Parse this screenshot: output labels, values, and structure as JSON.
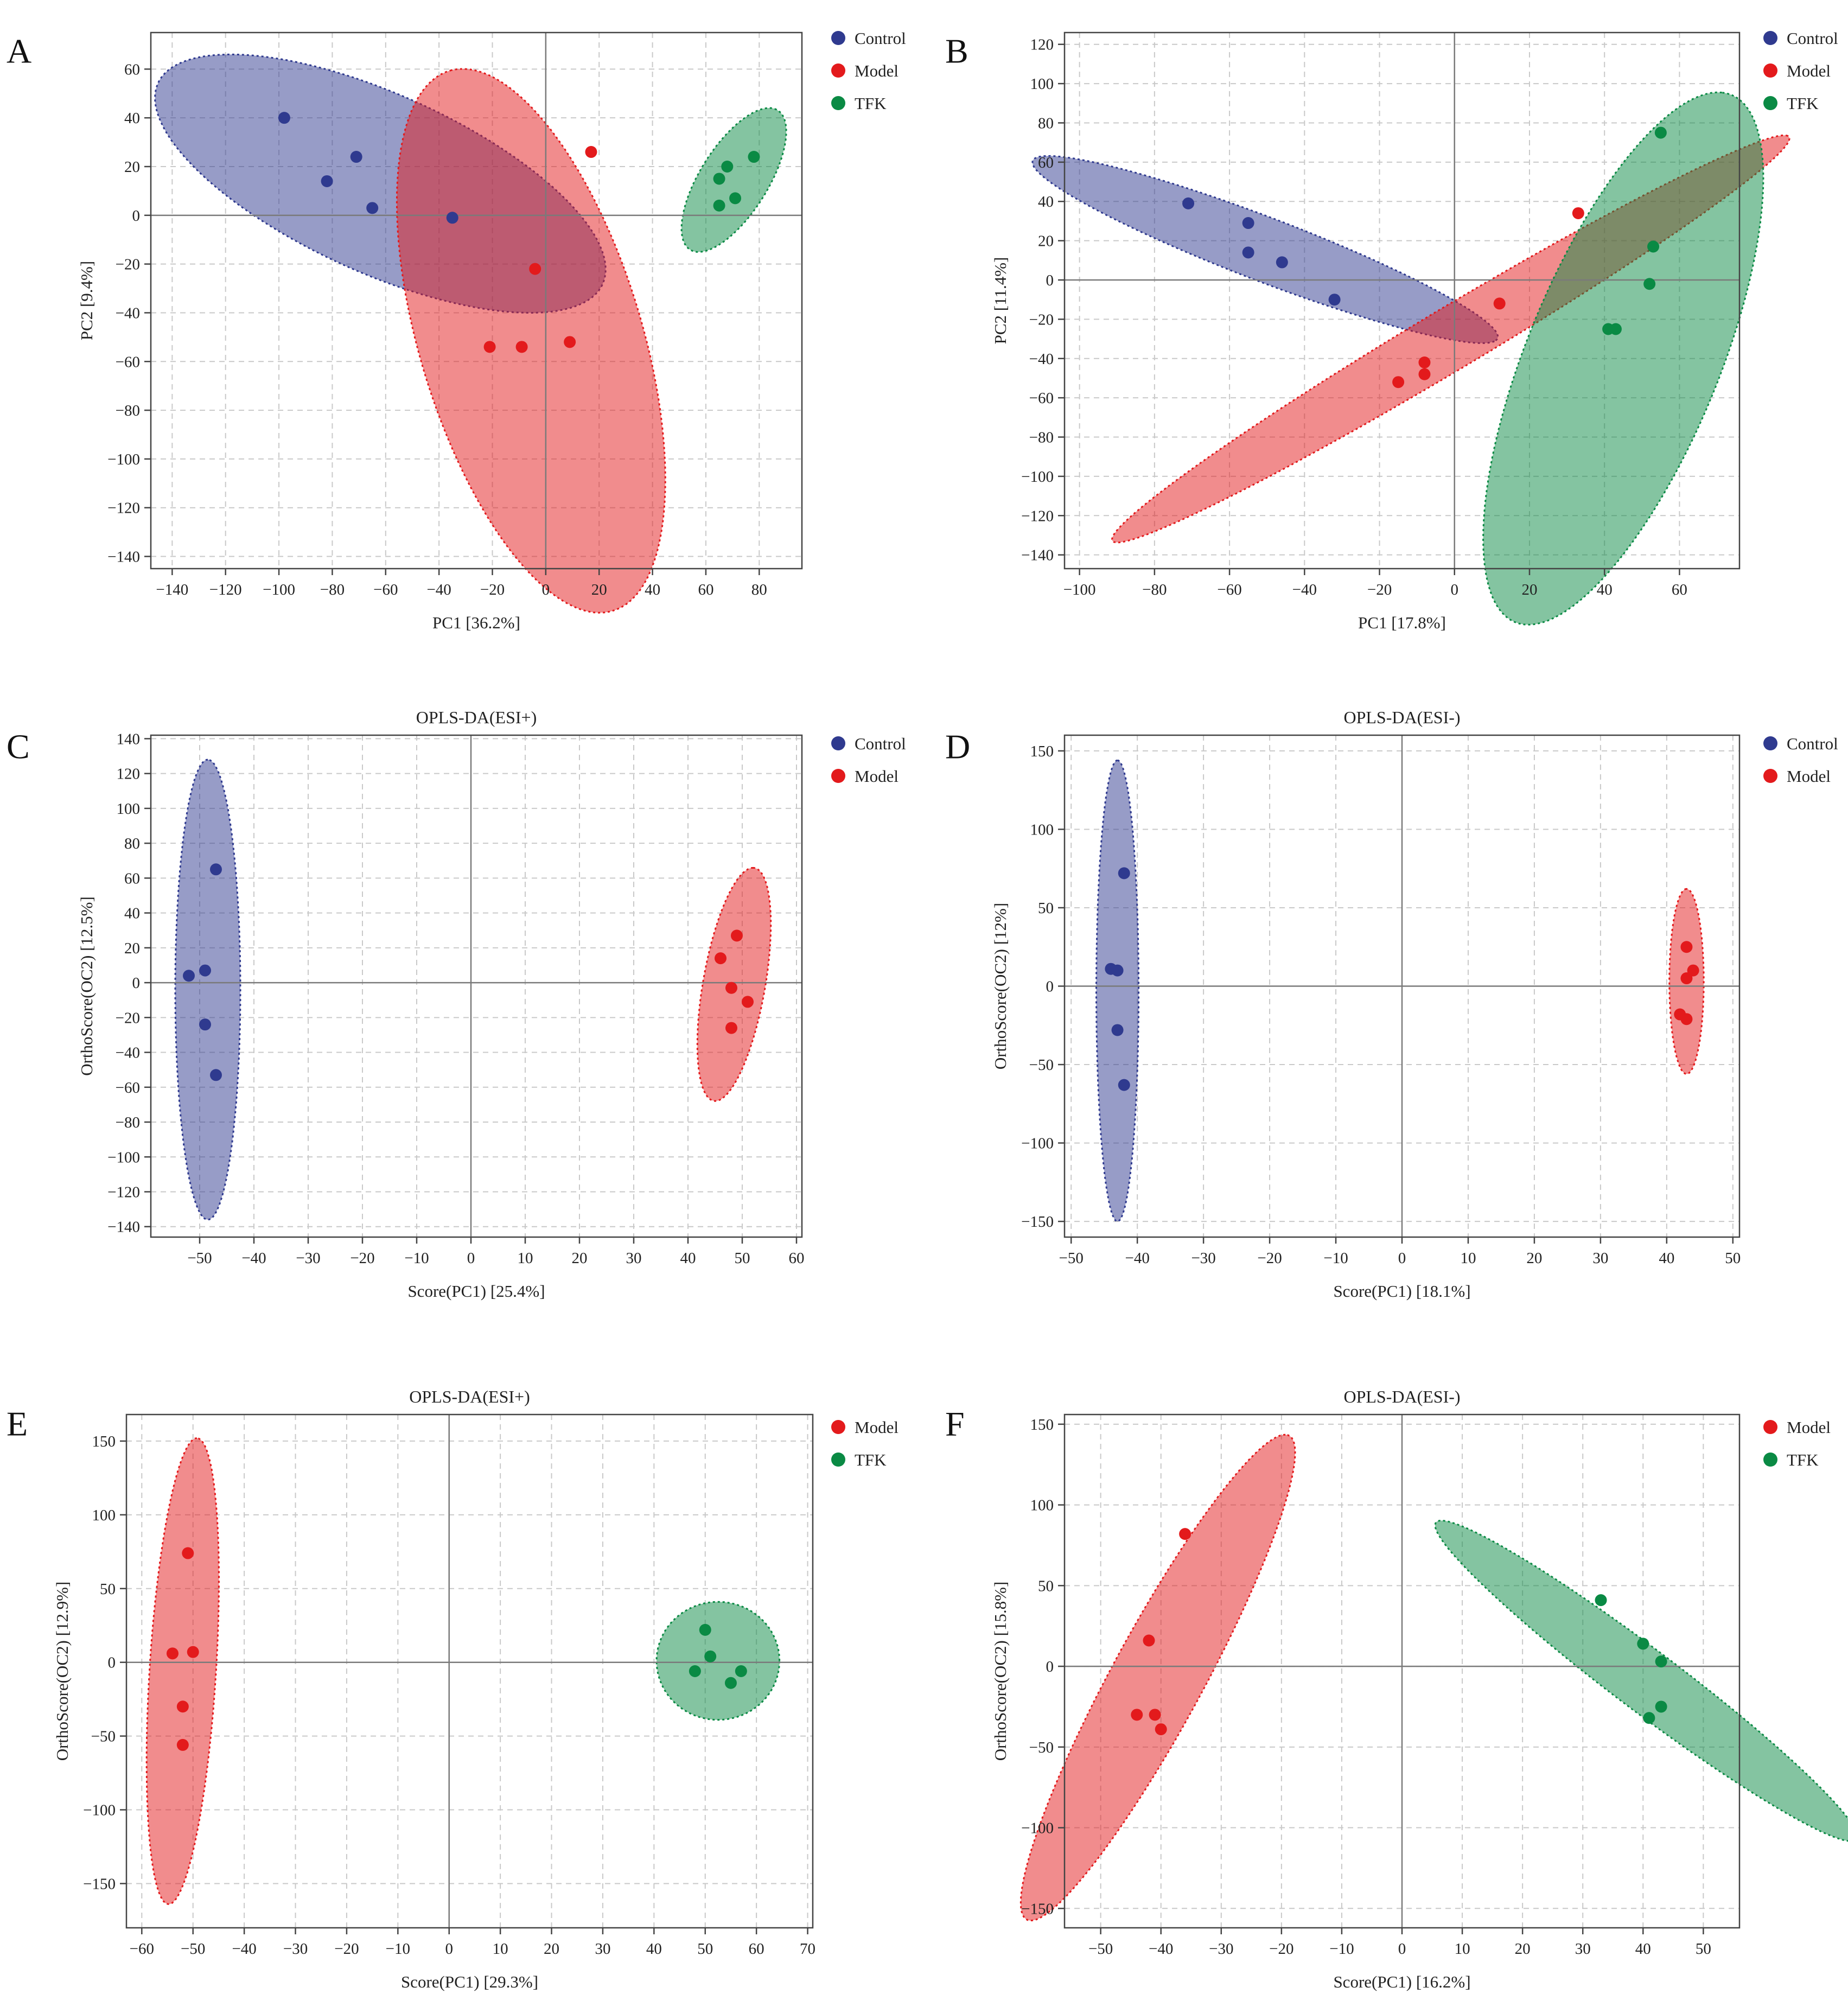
{
  "chart_data": [
    {
      "panel": "A",
      "type": "scatter",
      "title": "",
      "xlabel": "PC1 [36.2%]",
      "ylabel": "PC2 [9.4%]",
      "xlim": [
        -148,
        96
      ],
      "ylim": [
        -145,
        75
      ],
      "xticks": [
        -140,
        -120,
        -100,
        -80,
        -60,
        -40,
        -20,
        0,
        20,
        40,
        60,
        80
      ],
      "yticks": [
        60,
        40,
        20,
        0,
        -20,
        -40,
        -60,
        -80,
        -100,
        -120,
        -140
      ],
      "grid": true,
      "legend_position": "top-right",
      "series": [
        {
          "name": "Control",
          "color": "#2f3a8f",
          "points": [
            [
              -98,
              40
            ],
            [
              -82,
              14
            ],
            [
              -71,
              24
            ],
            [
              -65,
              3
            ],
            [
              -35,
              -1
            ]
          ],
          "ellipse": {
            "center": [
              -62,
              13
            ],
            "semi_axes": [
              93,
              36
            ],
            "angle_deg": -27
          }
        },
        {
          "name": "Model",
          "color": "#e31a1c",
          "points": [
            [
              -4,
              -22
            ],
            [
              -21,
              -54
            ],
            [
              -9,
              -54
            ],
            [
              9,
              -52
            ],
            [
              17,
              26
            ]
          ],
          "ellipse": {
            "center": [
              -5.5,
              -51.5
            ],
            "semi_axes": [
              115,
              42
            ],
            "angle_deg": 105
          }
        },
        {
          "name": "TFK",
          "color": "#0a8a44",
          "points": [
            [
              78,
              24
            ],
            [
              68,
              20
            ],
            [
              65,
              15
            ],
            [
              71,
              7
            ],
            [
              65,
              4
            ]
          ],
          "ellipse": {
            "center": [
              70.5,
              14.5
            ],
            "semi_axes": [
              33,
              13
            ],
            "angle_deg": 61
          }
        }
      ]
    },
    {
      "panel": "B",
      "type": "scatter",
      "title": "",
      "xlabel": "PC1 [17.8%]",
      "ylabel": "PC2 [11.4%]",
      "xlim": [
        -104,
        76
      ],
      "ylim": [
        -147,
        126
      ],
      "xticks": [
        -100,
        -80,
        -60,
        -40,
        -20,
        0,
        20,
        40,
        60
      ],
      "yticks": [
        120,
        100,
        80,
        60,
        40,
        20,
        0,
        -20,
        -40,
        -60,
        -80,
        -100,
        -120,
        -140
      ],
      "grid": true,
      "legend_position": "top-right",
      "series": [
        {
          "name": "Control",
          "color": "#2f3a8f",
          "points": [
            [
              -71,
              39
            ],
            [
              -55,
              29
            ],
            [
              -55,
              14
            ],
            [
              -46,
              9
            ],
            [
              -32,
              -10
            ]
          ],
          "ellipse": {
            "center": [
              -50.5,
              15.5
            ],
            "semi_axes": [
              77,
              14
            ],
            "angle_deg": -37
          }
        },
        {
          "name": "Model",
          "color": "#e31a1c",
          "points": [
            [
              -15,
              -52
            ],
            [
              -8,
              -42
            ],
            [
              -8,
              -48
            ],
            [
              12,
              -12
            ],
            [
              33,
              34
            ]
          ],
          "ellipse": {
            "center": [
              -1,
              -30
            ],
            "semi_axes": [
              137,
              12
            ],
            "angle_deg": 49
          }
        },
        {
          "name": "TFK",
          "color": "#0a8a44",
          "points": [
            [
              55,
              75
            ],
            [
              53,
              17
            ],
            [
              52,
              -2
            ],
            [
              41,
              -25
            ],
            [
              43,
              -25
            ]
          ],
          "ellipse": {
            "center": [
              45,
              -40
            ],
            "semi_axes": [
              138,
              27
            ],
            "angle_deg": 79
          }
        }
      ]
    },
    {
      "panel": "C",
      "type": "scatter",
      "title": "OPLS-DA(ESI+)",
      "xlabel": "Score(PC1) [25.4%]",
      "ylabel": "OrthoScore(OC2) [12.5%]",
      "xlim": [
        -59,
        61
      ],
      "ylim": [
        -146,
        142
      ],
      "xticks": [
        -50,
        -40,
        -30,
        -20,
        -10,
        0,
        10,
        20,
        30,
        40,
        50,
        60
      ],
      "yticks": [
        140,
        120,
        100,
        80,
        60,
        40,
        20,
        0,
        -20,
        -40,
        -60,
        -80,
        -100,
        -120,
        -140
      ],
      "grid": true,
      "legend_position": "top-right",
      "series": [
        {
          "name": "Control",
          "color": "#2f3a8f",
          "points": [
            [
              -47,
              65
            ],
            [
              -52,
              4
            ],
            [
              -49,
              7
            ],
            [
              -49,
              -24
            ],
            [
              -47,
              -53
            ]
          ],
          "ellipse": {
            "center": [
              -48.5,
              -4
            ],
            "semi_axes": [
              132,
              6
            ],
            "angle_deg": 90
          }
        },
        {
          "name": "Model",
          "color": "#e31a1c",
          "points": [
            [
              46,
              14
            ],
            [
              49,
              27
            ],
            [
              48,
              -3
            ],
            [
              51,
              -11
            ],
            [
              48,
              -26
            ]
          ],
          "ellipse": {
            "center": [
              48.5,
              -1
            ],
            "semi_axes": [
              67,
              5.8
            ],
            "angle_deg": 87
          }
        }
      ]
    },
    {
      "panel": "D",
      "type": "scatter",
      "title": "OPLS-DA(ESI-)",
      "xlabel": "Score(PC1) [18.1%]",
      "ylabel": "OrthoScore(OC2) [12%]",
      "xlim": [
        -51,
        51
      ],
      "ylim": [
        -160,
        160
      ],
      "xticks": [
        -50,
        -40,
        -30,
        -20,
        -10,
        0,
        10,
        20,
        30,
        40,
        50
      ],
      "yticks": [
        150,
        100,
        50,
        0,
        -50,
        -100,
        -150
      ],
      "grid": true,
      "legend_position": "top-right",
      "series": [
        {
          "name": "Control",
          "color": "#2f3a8f",
          "points": [
            [
              -42,
              72
            ],
            [
              -44,
              11
            ],
            [
              -43,
              10
            ],
            [
              -43,
              -28
            ],
            [
              -42,
              -63
            ]
          ],
          "ellipse": {
            "center": [
              -43,
              -3
            ],
            "semi_axes": [
              147,
              3.2
            ],
            "angle_deg": 90
          }
        },
        {
          "name": "Model",
          "color": "#e31a1c",
          "points": [
            [
              43,
              25
            ],
            [
              44,
              10
            ],
            [
              43,
              5
            ],
            [
              42,
              -18
            ],
            [
              43,
              -21
            ]
          ],
          "ellipse": {
            "center": [
              43,
              3
            ],
            "semi_axes": [
              59,
              2.6
            ],
            "angle_deg": 90
          }
        }
      ]
    },
    {
      "panel": "E",
      "type": "scatter",
      "title": "OPLS-DA(ESI+)",
      "xlabel": "Score(PC1) [29.3%]",
      "ylabel": "OrthoScore(OC2) [12.9%]",
      "xlim": [
        -63,
        71
      ],
      "ylim": [
        -180,
        168
      ],
      "xticks": [
        -60,
        -50,
        -40,
        -30,
        -20,
        -10,
        0,
        10,
        20,
        30,
        40,
        50,
        60,
        70
      ],
      "yticks": [
        150,
        100,
        50,
        0,
        -50,
        -100,
        -150
      ],
      "grid": true,
      "legend_position": "top-right",
      "series": [
        {
          "name": "Model",
          "color": "#e31a1c",
          "points": [
            [
              -51,
              74
            ],
            [
              -54,
              6
            ],
            [
              -50,
              7
            ],
            [
              -52,
              -30
            ],
            [
              -52,
              -56
            ]
          ],
          "ellipse": {
            "center": [
              -52,
              -6
            ],
            "semi_axes": [
              158,
              6.5
            ],
            "angle_deg": 89
          }
        },
        {
          "name": "TFK",
          "color": "#0a8a44",
          "points": [
            [
              50,
              22
            ],
            [
              51,
              4
            ],
            [
              48,
              -6
            ],
            [
              57,
              -6
            ],
            [
              55,
              -14
            ]
          ],
          "ellipse": {
            "center": [
              52.5,
              1
            ],
            "semi_axes": [
              12,
              40
            ],
            "angle_deg": 0
          }
        }
      ]
    },
    {
      "panel": "F",
      "type": "scatter",
      "title": "OPLS-DA(ESI-)",
      "xlabel": "Score(PC1) [16.2%]",
      "ylabel": "OrthoScore(OC2) [15.8%]",
      "xlim": [
        -56,
        56
      ],
      "ylim": [
        -162,
        156
      ],
      "xticks": [
        -50,
        -40,
        -30,
        -20,
        -10,
        0,
        10,
        20,
        30,
        40,
        50
      ],
      "yticks": [
        150,
        100,
        50,
        0,
        -50,
        -100,
        -150
      ],
      "grid": true,
      "legend_position": "top-right",
      "series": [
        {
          "name": "Model",
          "color": "#e31a1c",
          "points": [
            [
              -36,
              82
            ],
            [
              -42,
              16
            ],
            [
              -44,
              -30
            ],
            [
              -41,
              -30
            ],
            [
              -40,
              -39
            ]
          ],
          "ellipse": {
            "center": [
              -40.5,
              -7
            ],
            "semi_axes": [
              152,
              8.5
            ],
            "angle_deg": 82
          }
        },
        {
          "name": "TFK",
          "color": "#0a8a44",
          "points": [
            [
              33,
              41
            ],
            [
              40,
              14
            ],
            [
              43,
              3
            ],
            [
              41,
              -32
            ],
            [
              43,
              -25
            ]
          ],
          "ellipse": {
            "center": [
              40.5,
              -9
            ],
            "semi_axes": [
              105,
              8
            ],
            "angle_deg": -71
          }
        }
      ]
    }
  ]
}
